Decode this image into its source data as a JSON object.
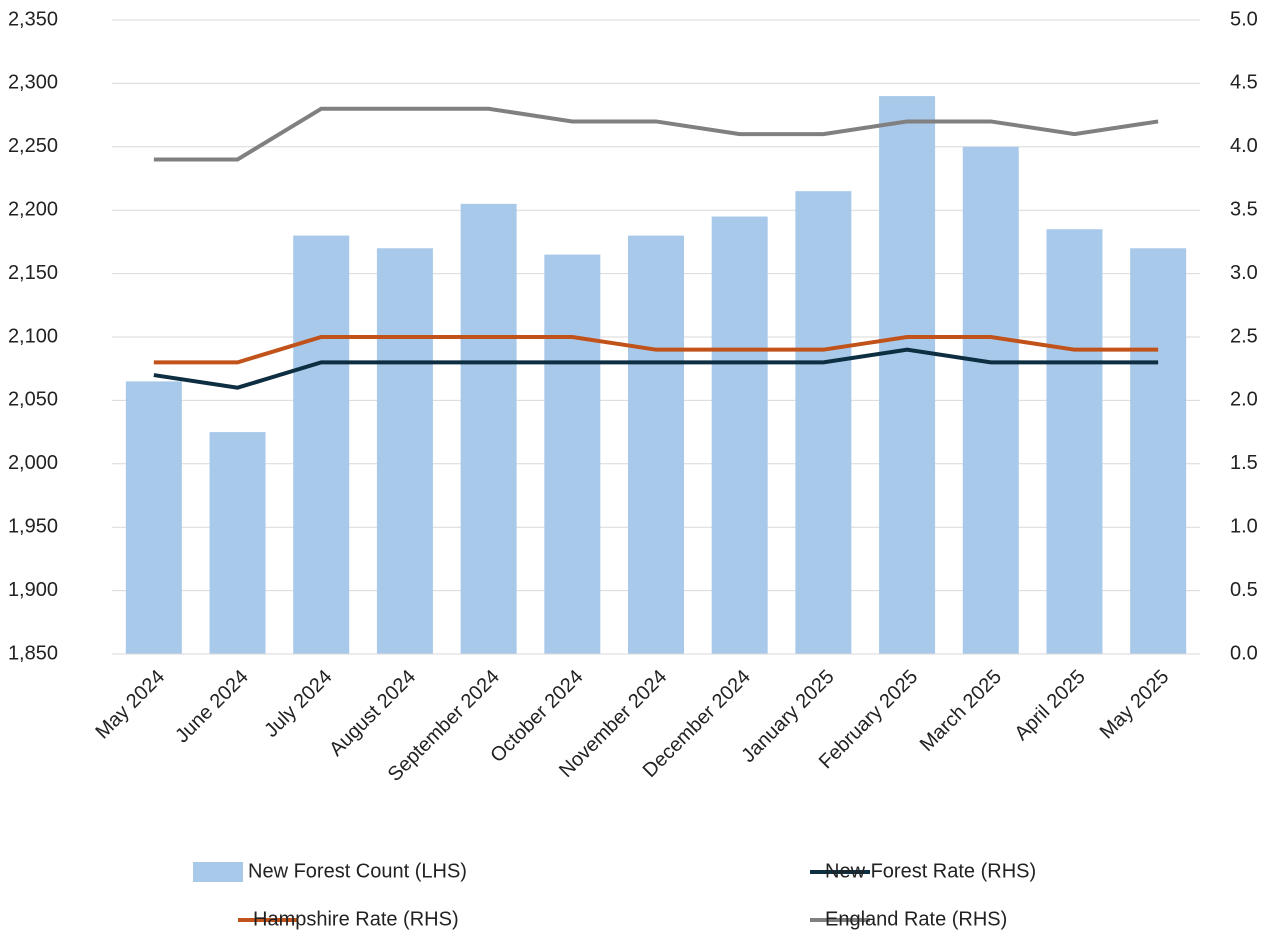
{
  "chart_data": {
    "type": "bar-line",
    "categories": [
      "May 2024",
      "June 2024",
      "July 2024",
      "August 2024",
      "September 2024",
      "October 2024",
      "November 2024",
      "December 2024",
      "January 2025",
      "February 2025",
      "March 2025",
      "April 2025",
      "May 2025"
    ],
    "series": [
      {
        "name": "New Forest Count (LHS)",
        "type": "bar",
        "color": "#a9c9eb",
        "values": [
          2065,
          2025,
          2180,
          2170,
          2205,
          2165,
          2180,
          2195,
          2215,
          2290,
          2250,
          2185,
          2170
        ]
      },
      {
        "name": "New Forest Rate (RHS)",
        "type": "line",
        "axis": "y2",
        "color": "#0e2e42",
        "values": [
          2.2,
          2.1,
          2.3,
          2.3,
          2.3,
          2.3,
          2.3,
          2.3,
          2.3,
          2.4,
          2.3,
          2.3,
          2.3
        ]
      },
      {
        "name": "Hampshire Rate (RHS)",
        "type": "line",
        "axis": "y2",
        "color": "#c0521a",
        "values": [
          2.3,
          2.3,
          2.5,
          2.5,
          2.5,
          2.5,
          2.4,
          2.4,
          2.4,
          2.5,
          2.5,
          2.4,
          2.4
        ]
      },
      {
        "name": "England Rate (RHS)",
        "type": "line",
        "axis": "y2",
        "color": "#808080",
        "values": [
          3.9,
          3.9,
          4.3,
          4.3,
          4.3,
          4.2,
          4.2,
          4.1,
          4.1,
          4.2,
          4.2,
          4.1,
          4.2
        ]
      }
    ],
    "ylim": [
      1850,
      2350
    ],
    "yticks": [
      {
        "value": 1850,
        "label": "1,850"
      },
      {
        "value": 1900,
        "label": "1,900"
      },
      {
        "value": 1950,
        "label": "1,950"
      },
      {
        "value": 2000,
        "label": "2,000"
      },
      {
        "value": 2050,
        "label": "2,050"
      },
      {
        "value": 2100,
        "label": "2,100"
      },
      {
        "value": 2150,
        "label": "2,150"
      },
      {
        "value": 2200,
        "label": "2,200"
      },
      {
        "value": 2250,
        "label": "2,250"
      },
      {
        "value": 2300,
        "label": "2,300"
      },
      {
        "value": 2350,
        "label": "2,350"
      }
    ],
    "y2lim": [
      0,
      5
    ],
    "y2ticks": [
      {
        "value": 0,
        "label": "0.0"
      },
      0.5,
      {
        "value": 1,
        "label": "1.0"
      },
      1.5,
      {
        "value": 2,
        "label": "2.0"
      },
      2.5,
      {
        "value": 3,
        "label": "3.0"
      },
      3.5,
      {
        "value": 4,
        "label": "4.0"
      },
      4.5,
      {
        "value": 5,
        "label": "5.0"
      }
    ],
    "grid": true,
    "legend": "bottom"
  }
}
